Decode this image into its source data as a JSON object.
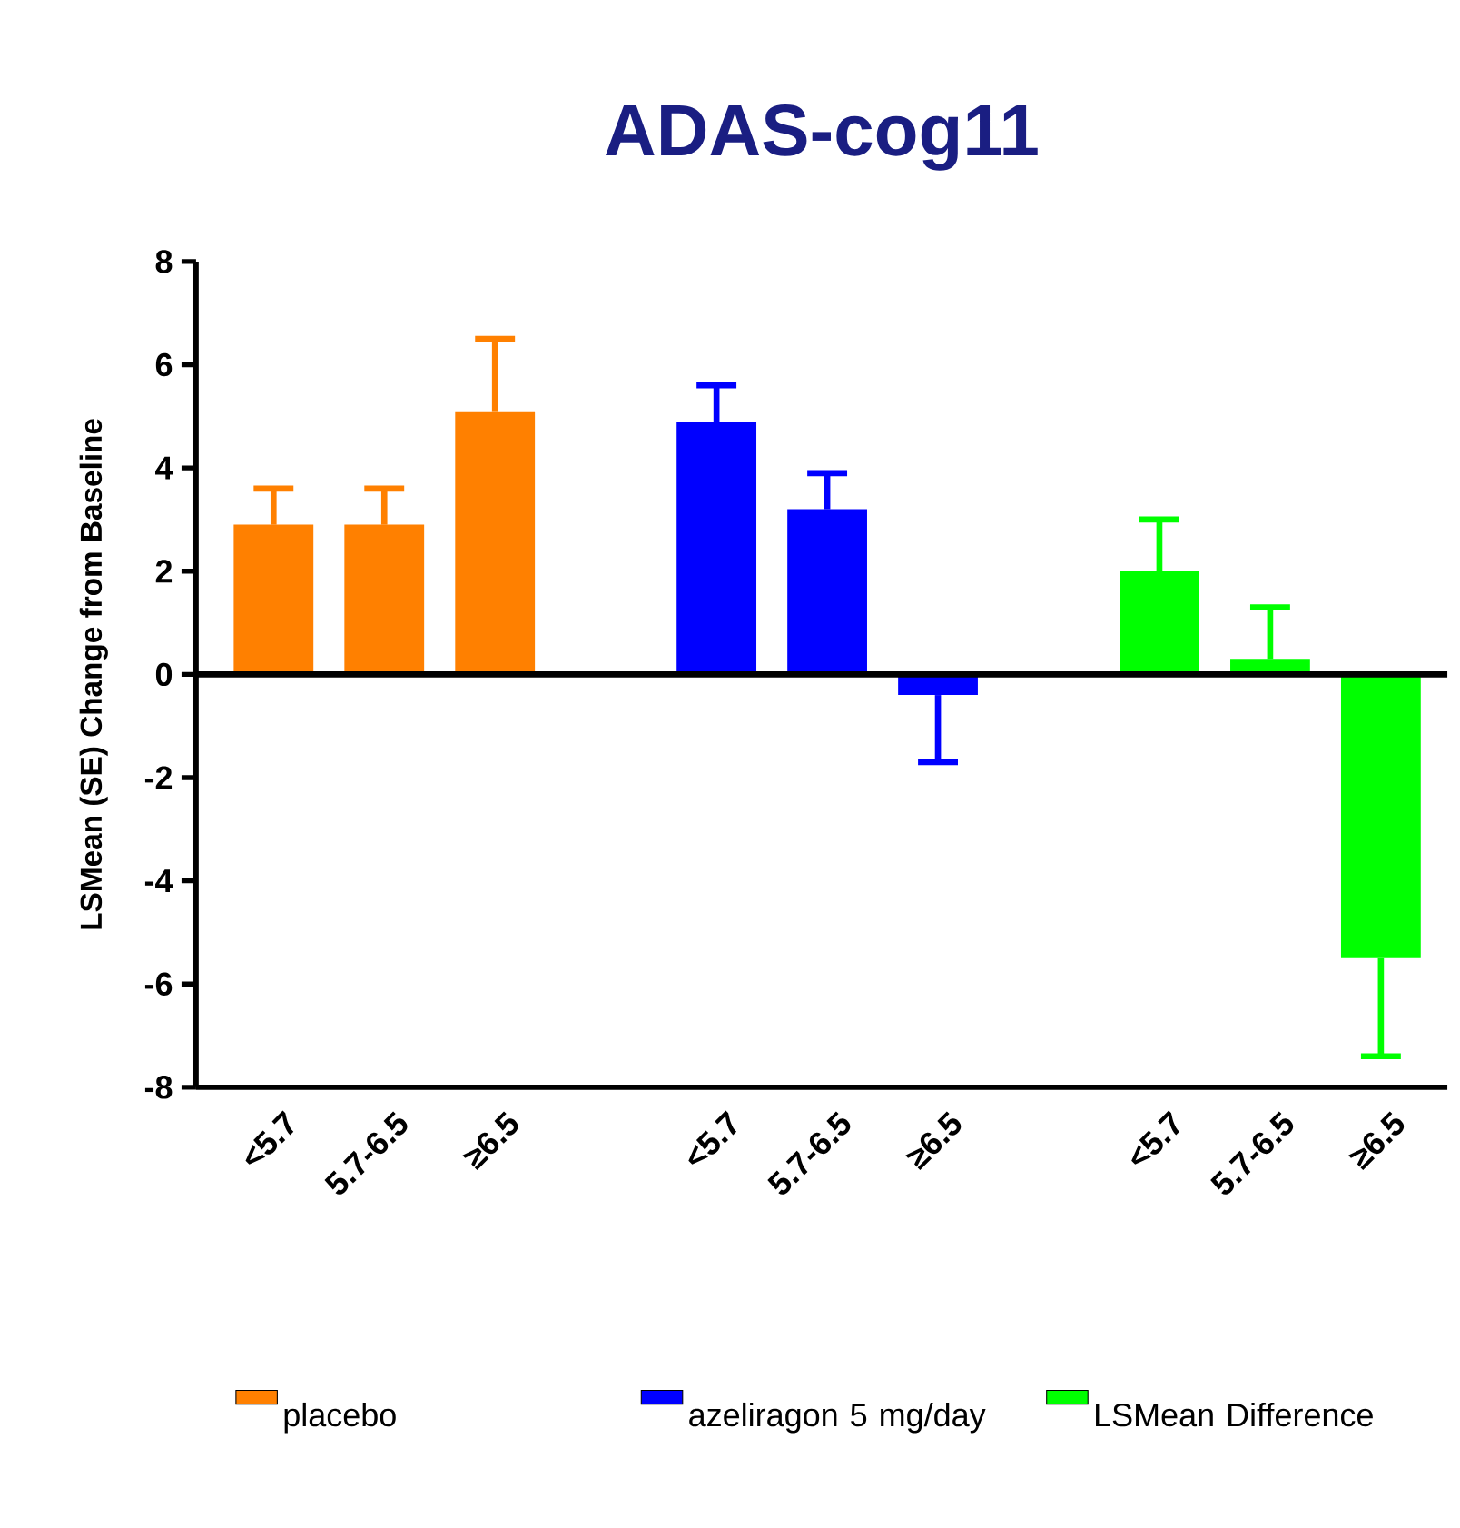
{
  "chart_data": {
    "type": "bar",
    "title": "ADAS-cog11",
    "ylabel": "LSMean (SE) Change from Baseline",
    "categories": [
      "<5.7",
      "5.7-6.5",
      "≥6.5",
      null,
      "<5.7",
      "5.7-6.5",
      "≥6.5",
      null,
      "<5.7",
      "5.7-6.5",
      "≥6.5"
    ],
    "series": [
      {
        "name": "placebo",
        "color": "#ff8000",
        "values": [
          2.9,
          2.9,
          5.1,
          null,
          null,
          null,
          null,
          null,
          null,
          null,
          null
        ],
        "errors": [
          [
            2.9,
            3.6
          ],
          [
            2.9,
            3.6
          ],
          [
            5.1,
            6.5
          ],
          null,
          null,
          null,
          null,
          null,
          null,
          null,
          null
        ]
      },
      {
        "name": "azeliragon 5 mg/day",
        "color": "#0000ff",
        "values": [
          null,
          null,
          null,
          null,
          4.9,
          3.2,
          -0.4,
          null,
          null,
          null,
          null
        ],
        "errors": [
          null,
          null,
          null,
          null,
          [
            4.9,
            5.6
          ],
          [
            3.2,
            3.9
          ],
          [
            -1.7,
            -0.4
          ],
          null,
          null,
          null,
          null
        ]
      },
      {
        "name": "LSMean Difference",
        "color": "#00ff00",
        "values": [
          null,
          null,
          null,
          null,
          null,
          null,
          null,
          null,
          2.0,
          0.3,
          -5.5
        ],
        "errors": [
          null,
          null,
          null,
          null,
          null,
          null,
          null,
          null,
          [
            2.0,
            3.0
          ],
          [
            0.3,
            1.3
          ],
          [
            -7.4,
            -5.5
          ]
        ]
      }
    ],
    "ylim": [
      -8,
      8
    ],
    "yticks": [
      -8,
      -6,
      -4,
      -2,
      0,
      2,
      4,
      6,
      8
    ],
    "ref_lines": [
      {
        "axis": "y",
        "value": 0
      }
    ],
    "grid": false,
    "legend": "bottom"
  }
}
